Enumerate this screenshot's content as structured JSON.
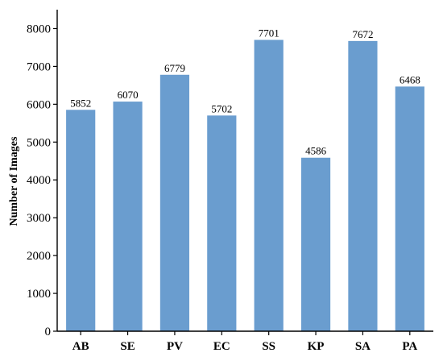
{
  "chart_data": {
    "type": "bar",
    "title": "",
    "xlabel": "",
    "ylabel": "Number of Images",
    "categories": [
      "AB",
      "SE",
      "PV",
      "EC",
      "SS",
      "KP",
      "SA",
      "PA"
    ],
    "values": [
      5852,
      6070,
      6779,
      5702,
      7701,
      4586,
      7672,
      6468
    ],
    "data_labels": [
      "5852",
      "6070",
      "6779",
      "5702",
      "7701",
      "4586",
      "7672",
      "6468"
    ],
    "ylim": [
      0,
      8500
    ],
    "yticks": [
      0,
      1000,
      2000,
      3000,
      4000,
      5000,
      6000,
      7000,
      8000
    ],
    "ytick_labels": [
      "0",
      "1000",
      "2000",
      "3000",
      "4000",
      "5000",
      "6000",
      "7000",
      "8000"
    ],
    "bar_color": "#6a9dcf",
    "grid": false,
    "legend": "none"
  }
}
